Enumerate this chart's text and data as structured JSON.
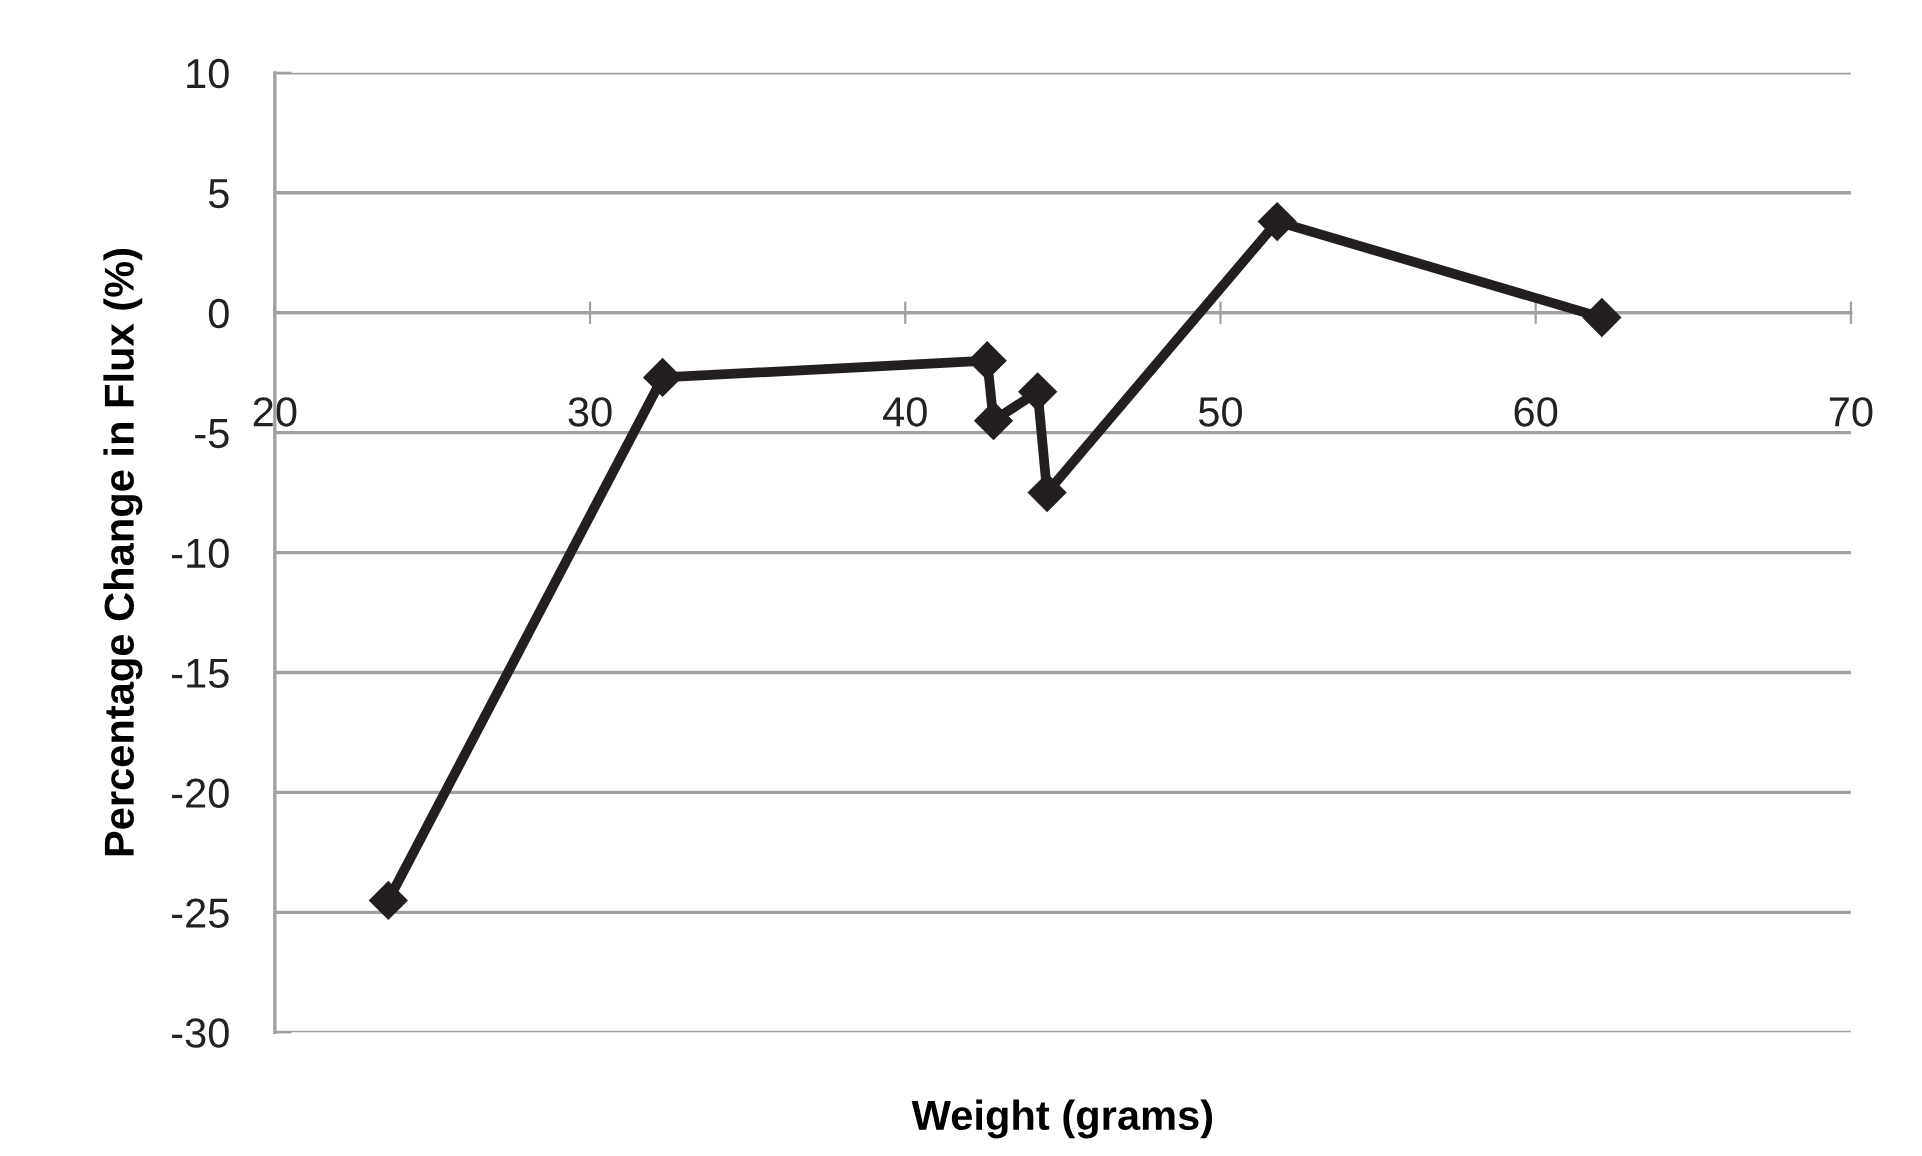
{
  "chart_data": {
    "type": "line",
    "xlabel": "Weight (grams)",
    "ylabel": "Percentage Change in Flux (%)",
    "series": [
      {
        "color": "#231f20",
        "x": [
          23.6,
          32.3,
          42.6,
          42.8,
          44.2,
          44.5,
          51.8,
          62.1
        ],
        "values": [
          -24.5,
          -2.7,
          -2.0,
          -4.5,
          -3.3,
          -7.5,
          3.8,
          -0.2
        ]
      }
    ],
    "xlim": [
      20,
      70
    ],
    "xticks": [
      20,
      30,
      40,
      50,
      60,
      70
    ],
    "ylim": [
      -30,
      10
    ],
    "yticks": [
      -30,
      -25,
      -20,
      -15,
      -10,
      -5,
      0,
      5,
      10
    ],
    "grid": "y",
    "marker": "diamond",
    "line_style": "solid",
    "legend": false
  }
}
